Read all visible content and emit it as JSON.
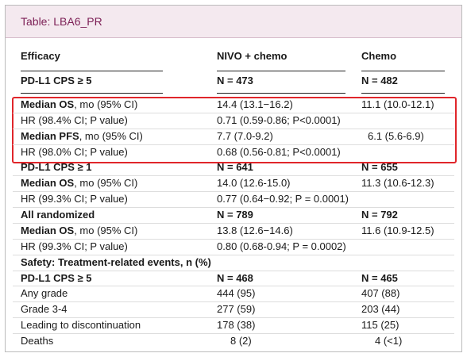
{
  "header": {
    "title": "Table: LBA6_PR"
  },
  "table": {
    "columns": [
      "Efficacy",
      "NIVO + chemo",
      "Chemo"
    ],
    "rows": [
      [
        "PD-L1 CPS ≥ 5",
        "N = 473",
        "N = 482"
      ],
      [
        [
          "Median OS",
          ", mo (95% CI)"
        ],
        "14.4 (13.1−16.2)",
        "11.1 (10.0-12.1)"
      ],
      [
        "HR (98.4% CI; P value)",
        "0.71 (0.59-0.86; P<0.0001)"
      ],
      [
        [
          "Median PFS",
          ", mo (95% CI)"
        ],
        "7.7 (7.0-9.2)",
        "6.1 (5.6-6.9)"
      ],
      [
        "HR (98.0% CI; P value)",
        "0.68 (0.56-0.81; P<0.0001)"
      ],
      [
        "PD-L1 CPS ≥ 1",
        "N = 641",
        "N = 655"
      ],
      [
        [
          "Median OS",
          ", mo (95% CI)"
        ],
        "14.0 (12.6-15.0)",
        "11.3 (10.6-12.3)"
      ],
      [
        "HR (99.3% CI; P value)",
        "0.77 (0.64−0.92; P = 0.0001)"
      ],
      [
        "All randomized",
        "N = 789",
        "N = 792"
      ],
      [
        [
          "Median OS",
          ", mo (95% CI)"
        ],
        "13.8 (12.6−14.6)",
        "11.6 (10.9-12.5)"
      ],
      [
        "HR (99.3% CI; P value)",
        "0.80 (0.68-0.94; P = 0.0002)"
      ],
      [
        "Safety: Treatment-related events, n (%)"
      ],
      [
        "PD-L1 CPS ≥ 5",
        "N = 468",
        "N = 465"
      ],
      [
        "Any grade",
        "444 (95)",
        "407 (88)"
      ],
      [
        "Grade 3-4",
        "277 (59)",
        "203 (44)"
      ],
      [
        "Leading to discontinuation",
        "178 (38)",
        "115 (25)"
      ],
      [
        "Deaths",
        "8 (2)",
        "4 (<1)"
      ]
    ]
  }
}
